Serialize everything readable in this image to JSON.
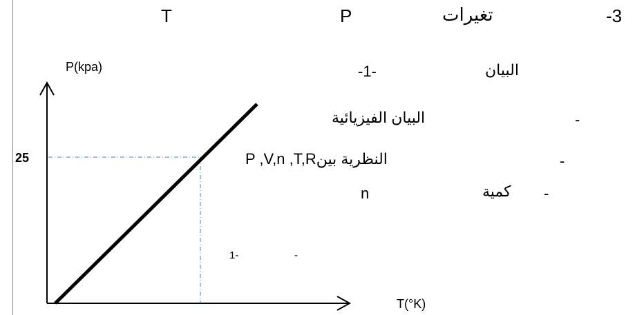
{
  "header": {
    "number": "-3",
    "word": "تغيرات",
    "symbol_p": "P",
    "symbol_t": "T"
  },
  "section": {
    "label_bayan": "البيان",
    "number": "-1-"
  },
  "bullets": [
    {
      "dash": "-",
      "text": "البيان الفيزيائية"
    },
    {
      "dash": "-",
      "text": "النظرية بينP ,V,n ,T,R"
    },
    {
      "dash": "-",
      "text": "كمية",
      "symbol": "n"
    }
  ],
  "side_note": {
    "number": "1-",
    "dash": "-"
  },
  "chart_data": {
    "type": "line",
    "xlabel": "T(°K)",
    "ylabel": "P(kpa)",
    "y_marked_value": "25",
    "colors": {
      "line": "#000000",
      "guide": "#4a7ebb"
    }
  }
}
